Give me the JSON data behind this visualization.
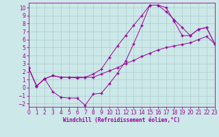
{
  "xlabel": "Windchill (Refroidissement éolien,°C)",
  "xlim": [
    0,
    23
  ],
  "ylim": [
    -2.4,
    10.6
  ],
  "xticks": [
    0,
    1,
    2,
    3,
    4,
    5,
    6,
    7,
    8,
    9,
    10,
    11,
    12,
    13,
    14,
    15,
    16,
    17,
    18,
    19,
    20,
    21,
    22,
    23
  ],
  "yticks": [
    -2,
    -1,
    0,
    1,
    2,
    3,
    4,
    5,
    6,
    7,
    8,
    9,
    10
  ],
  "bg_color": "#cce8e8",
  "line_color": "#990099",
  "grid_color": "#aacccc",
  "line1_x": [
    0,
    1,
    2,
    3,
    4,
    5,
    6,
    7,
    8,
    9,
    10,
    11,
    12,
    13,
    14,
    15,
    16,
    17,
    18,
    19,
    20,
    21,
    22,
    23
  ],
  "line1_y": [
    2.5,
    0.2,
    1.1,
    1.5,
    1.3,
    1.3,
    1.3,
    1.3,
    1.3,
    1.7,
    2.1,
    2.5,
    3.0,
    3.4,
    3.9,
    4.3,
    4.7,
    5.0,
    5.2,
    5.4,
    5.6,
    6.0,
    6.4,
    5.5
  ],
  "line2_x": [
    0,
    1,
    2,
    3,
    4,
    5,
    6,
    7,
    8,
    9,
    10,
    11,
    12,
    13,
    14,
    15,
    16,
    17,
    18,
    19,
    20,
    21,
    22,
    23
  ],
  "line2_y": [
    2.5,
    0.2,
    1.1,
    -0.5,
    -1.2,
    -1.3,
    -1.3,
    -2.2,
    -0.8,
    -0.7,
    0.5,
    1.8,
    3.3,
    5.5,
    7.8,
    10.3,
    10.3,
    10.0,
    8.3,
    6.5,
    6.5,
    7.3,
    7.5,
    5.5
  ],
  "line3_x": [
    0,
    1,
    2,
    3,
    4,
    5,
    6,
    7,
    8,
    9,
    10,
    11,
    12,
    13,
    14,
    15,
    16,
    17,
    18,
    19,
    20,
    21,
    22,
    23
  ],
  "line3_y": [
    2.5,
    0.2,
    1.1,
    1.5,
    1.3,
    1.3,
    1.2,
    1.3,
    1.7,
    2.3,
    3.8,
    5.2,
    6.5,
    7.8,
    9.0,
    10.3,
    10.3,
    9.5,
    8.5,
    7.5,
    6.5,
    7.3,
    7.5,
    5.5
  ],
  "tick_fontsize": 5.5,
  "xlabel_fontsize": 5.5
}
